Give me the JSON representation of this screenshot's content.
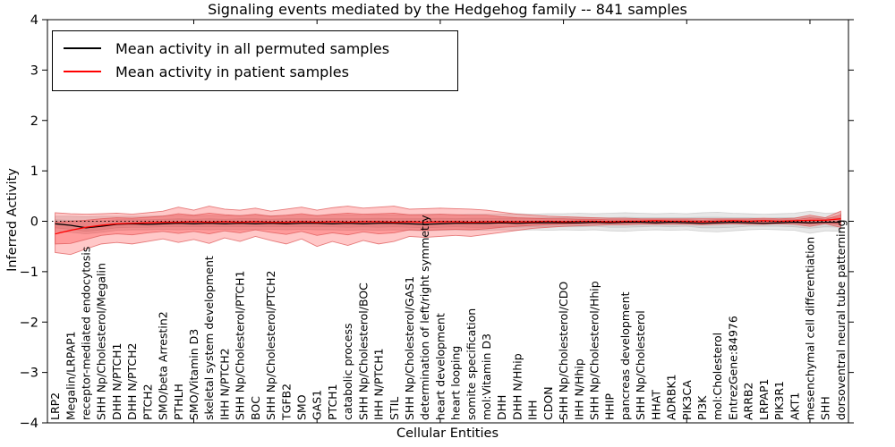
{
  "figure": {
    "title": "Signaling events mediated by the Hedgehog family -- 841 samples",
    "xlabel": "Cellular Entities",
    "ylabel": "Inferred Activity"
  },
  "legend": {
    "entries": [
      {
        "label": "Mean activity in all permuted samples",
        "color": "#000000"
      },
      {
        "label": "Mean activity in patient samples",
        "color": "#ff0000"
      }
    ]
  },
  "chart_data": {
    "type": "line",
    "title": "Signaling events mediated by the Hedgehog family -- 841 samples",
    "xlabel": "Cellular Entities",
    "ylabel": "Inferred Activity",
    "ylim": [
      -4,
      4
    ],
    "ytick_labels": [
      "4",
      "3",
      "2",
      "1",
      "0",
      "−1",
      "−2",
      "−3",
      "−4"
    ],
    "ytick_values": [
      4,
      3,
      2,
      1,
      0,
      -1,
      -2,
      -3,
      -4
    ],
    "grid": false,
    "legend_position": "upper left",
    "zero_line_dotted": true,
    "top_tick_indices": [
      9,
      17,
      25,
      33,
      41,
      49
    ],
    "categories": [
      "LRP2",
      "Megalin/LRPAP1",
      "receptor-mediated endocytosis",
      "SHH Np/Cholesterol/Megalin",
      "DHH N/PTCH1",
      "DHH N/PTCH2",
      "PTCH2",
      "SMO/beta Arrestin2",
      "PTHLH",
      "SMO/Vitamin D3",
      "skeletal system development",
      "IHH N/PTCH2",
      "SHH Np/Cholesterol/PTCH1",
      "BOC",
      "SHH Np/Cholesterol/PTCH2",
      "TGFB2",
      "SMO",
      "GAS1",
      "PTCH1",
      "catabolic process",
      "SHH Np/Cholesterol/BOC",
      "IHH N/PTCH1",
      "STIL",
      "SHH Np/Cholesterol/GAS1",
      "determination of left/right symmetry",
      "heart development",
      "heart looping",
      "somite specification",
      "mol:Vitamin D3",
      "DHH",
      "DHH N/Hhip",
      "IHH",
      "CDON",
      "SHH Np/Cholesterol/CDO",
      "IHH N/Hhip",
      "SHH Np/Cholesterol/Hhip",
      "HHIP",
      "pancreas development",
      "SHH Np/Cholesterol",
      "HHAT",
      "ADRBK1",
      "PIK3CA",
      "PI3K",
      "mol:Cholesterol",
      "EntrezGene:84976",
      "ARRB2",
      "LRPAP1",
      "PIK3R1",
      "AKT1",
      "mesenchymal cell differentiation",
      "SHH",
      "dorsoventral neural tube patterning"
    ],
    "series": [
      {
        "name": "Mean activity in all permuted samples",
        "color": "#000000",
        "band_color": "#aaaaaa",
        "values": [
          -0.05,
          -0.08,
          -0.13,
          -0.1,
          -0.06,
          -0.05,
          -0.06,
          -0.05,
          -0.04,
          -0.05,
          -0.04,
          -0.05,
          -0.04,
          -0.05,
          -0.04,
          -0.05,
          -0.04,
          -0.04,
          -0.05,
          -0.04,
          -0.05,
          -0.04,
          -0.04,
          -0.05,
          -0.06,
          -0.05,
          -0.04,
          -0.04,
          -0.04,
          -0.03,
          -0.04,
          -0.03,
          -0.03,
          -0.03,
          -0.03,
          -0.02,
          -0.03,
          -0.02,
          -0.02,
          -0.03,
          -0.02,
          -0.03,
          -0.04,
          -0.03,
          -0.02,
          -0.03,
          -0.04,
          -0.03,
          -0.02,
          -0.03,
          -0.02,
          -0.02
        ],
        "band_outer_hi": [
          0.1,
          0.1,
          0.09,
          0.1,
          0.1,
          0.1,
          0.1,
          0.11,
          0.12,
          0.11,
          0.12,
          0.11,
          0.12,
          0.12,
          0.11,
          0.12,
          0.12,
          0.12,
          0.12,
          0.13,
          0.12,
          0.13,
          0.13,
          0.13,
          0.14,
          0.14,
          0.13,
          0.14,
          0.14,
          0.14,
          0.15,
          0.14,
          0.15,
          0.15,
          0.16,
          0.15,
          0.16,
          0.17,
          0.16,
          0.15,
          0.16,
          0.15,
          0.17,
          0.18,
          0.16,
          0.15,
          0.14,
          0.15,
          0.16,
          0.2,
          0.16,
          0.17
        ],
        "band_outer_lo": [
          -0.2,
          -0.22,
          -0.25,
          -0.22,
          -0.18,
          -0.17,
          -0.17,
          -0.16,
          -0.17,
          -0.16,
          -0.17,
          -0.16,
          -0.17,
          -0.16,
          -0.16,
          -0.17,
          -0.16,
          -0.17,
          -0.17,
          -0.18,
          -0.17,
          -0.18,
          -0.17,
          -0.18,
          -0.19,
          -0.18,
          -0.17,
          -0.18,
          -0.18,
          -0.17,
          -0.18,
          -0.17,
          -0.18,
          -0.17,
          -0.18,
          -0.17,
          -0.19,
          -0.2,
          -0.18,
          -0.17,
          -0.18,
          -0.17,
          -0.2,
          -0.21,
          -0.19,
          -0.17,
          -0.16,
          -0.17,
          -0.18,
          -0.24,
          -0.19,
          -0.2
        ],
        "band_inner_hi": [
          0.03,
          0.02,
          0.0,
          0.01,
          0.03,
          0.03,
          0.03,
          0.04,
          0.05,
          0.04,
          0.05,
          0.04,
          0.05,
          0.05,
          0.04,
          0.05,
          0.05,
          0.05,
          0.05,
          0.05,
          0.05,
          0.06,
          0.05,
          0.05,
          0.05,
          0.06,
          0.05,
          0.06,
          0.06,
          0.06,
          0.06,
          0.06,
          0.07,
          0.07,
          0.07,
          0.07,
          0.07,
          0.08,
          0.07,
          0.07,
          0.07,
          0.07,
          0.08,
          0.08,
          0.07,
          0.07,
          0.06,
          0.07,
          0.07,
          0.09,
          0.07,
          0.08
        ],
        "band_inner_lo": [
          -0.13,
          -0.16,
          -0.2,
          -0.17,
          -0.13,
          -0.12,
          -0.12,
          -0.11,
          -0.11,
          -0.11,
          -0.11,
          -0.11,
          -0.11,
          -0.11,
          -0.11,
          -0.11,
          -0.11,
          -0.11,
          -0.11,
          -0.12,
          -0.11,
          -0.12,
          -0.11,
          -0.12,
          -0.13,
          -0.12,
          -0.11,
          -0.12,
          -0.12,
          -0.11,
          -0.12,
          -0.11,
          -0.11,
          -0.11,
          -0.11,
          -0.1,
          -0.12,
          -0.12,
          -0.11,
          -0.1,
          -0.11,
          -0.1,
          -0.13,
          -0.13,
          -0.12,
          -0.1,
          -0.1,
          -0.1,
          -0.11,
          -0.14,
          -0.11,
          -0.12
        ]
      },
      {
        "name": "Mean activity in patient samples",
        "color": "#ff0000",
        "band_color": "#ff2222",
        "values": [
          -0.25,
          -0.18,
          -0.12,
          -0.08,
          -0.05,
          -0.04,
          -0.03,
          -0.02,
          -0.02,
          -0.01,
          -0.02,
          -0.01,
          -0.02,
          -0.01,
          -0.02,
          -0.02,
          -0.01,
          -0.02,
          -0.01,
          -0.02,
          -0.01,
          -0.01,
          -0.02,
          -0.01,
          -0.02,
          -0.01,
          -0.01,
          -0.02,
          -0.01,
          -0.01,
          -0.01,
          -0.01,
          0.0,
          -0.01,
          0.0,
          0.0,
          -0.01,
          0.0,
          0.0,
          0.01,
          0.0,
          0.0,
          -0.01,
          0.0,
          0.01,
          0.0,
          0.01,
          0.0,
          0.01,
          0.02,
          0.02,
          0.05
        ],
        "band_outer_hi": [
          0.17,
          0.15,
          0.14,
          0.15,
          0.16,
          0.14,
          0.17,
          0.2,
          0.28,
          0.22,
          0.3,
          0.24,
          0.22,
          0.26,
          0.2,
          0.24,
          0.28,
          0.22,
          0.27,
          0.3,
          0.26,
          0.28,
          0.3,
          0.24,
          0.25,
          0.26,
          0.25,
          0.24,
          0.22,
          0.18,
          0.14,
          0.12,
          0.1,
          0.09,
          0.08,
          0.07,
          0.06,
          0.06,
          0.05,
          0.05,
          0.05,
          0.05,
          0.05,
          0.05,
          0.05,
          0.05,
          0.06,
          0.05,
          0.06,
          0.12,
          0.07,
          0.2
        ],
        "band_outer_lo": [
          -0.62,
          -0.66,
          -0.55,
          -0.45,
          -0.42,
          -0.45,
          -0.4,
          -0.35,
          -0.42,
          -0.36,
          -0.44,
          -0.33,
          -0.4,
          -0.3,
          -0.38,
          -0.45,
          -0.35,
          -0.5,
          -0.4,
          -0.48,
          -0.38,
          -0.45,
          -0.4,
          -0.3,
          -0.32,
          -0.3,
          -0.28,
          -0.3,
          -0.26,
          -0.22,
          -0.18,
          -0.14,
          -0.12,
          -0.1,
          -0.09,
          -0.08,
          -0.07,
          -0.07,
          -0.06,
          -0.06,
          -0.06,
          -0.06,
          -0.07,
          -0.06,
          -0.05,
          -0.06,
          -0.06,
          -0.05,
          -0.06,
          -0.1,
          -0.05,
          -0.12
        ],
        "band_inner_hi": [
          -0.02,
          0.0,
          0.02,
          0.05,
          0.07,
          0.06,
          0.08,
          0.1,
          0.15,
          0.12,
          0.16,
          0.13,
          0.11,
          0.14,
          0.1,
          0.12,
          0.15,
          0.11,
          0.14,
          0.16,
          0.14,
          0.15,
          0.16,
          0.13,
          0.13,
          0.14,
          0.13,
          0.12,
          0.12,
          0.09,
          0.07,
          0.06,
          0.05,
          0.05,
          0.04,
          0.04,
          0.03,
          0.03,
          0.03,
          0.03,
          0.03,
          0.03,
          0.02,
          0.03,
          0.03,
          0.03,
          0.03,
          0.03,
          0.03,
          0.07,
          0.04,
          0.13
        ],
        "band_inner_lo": [
          -0.45,
          -0.44,
          -0.36,
          -0.28,
          -0.25,
          -0.27,
          -0.23,
          -0.2,
          -0.24,
          -0.2,
          -0.25,
          -0.19,
          -0.23,
          -0.17,
          -0.22,
          -0.26,
          -0.2,
          -0.28,
          -0.23,
          -0.27,
          -0.21,
          -0.25,
          -0.23,
          -0.17,
          -0.18,
          -0.17,
          -0.16,
          -0.17,
          -0.15,
          -0.12,
          -0.1,
          -0.08,
          -0.07,
          -0.06,
          -0.05,
          -0.04,
          -0.04,
          -0.04,
          -0.03,
          -0.04,
          -0.03,
          -0.03,
          -0.04,
          -0.03,
          -0.03,
          -0.03,
          -0.03,
          -0.03,
          -0.03,
          -0.06,
          -0.03,
          -0.07
        ]
      }
    ]
  }
}
